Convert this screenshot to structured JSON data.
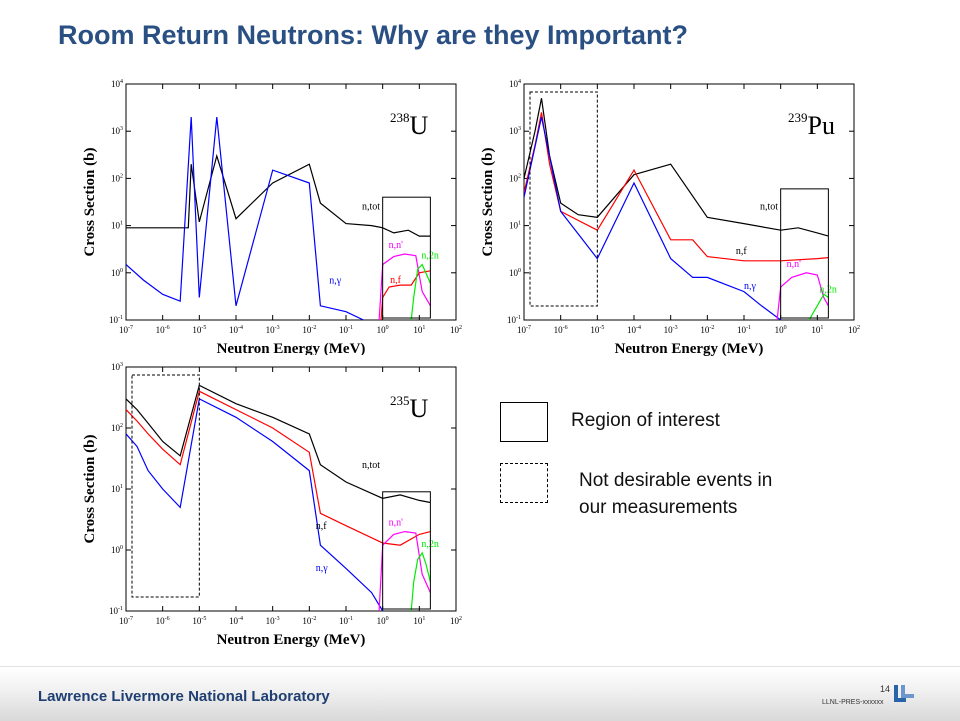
{
  "slide": {
    "title": "Room Return Neutrons: Why are they Important?",
    "legend": {
      "solid_label": "Region of interest",
      "dashed_label_line1": "Not desirable events in",
      "dashed_label_line2": "our measurements"
    },
    "footer": {
      "lab": "Lawrence Livermore National Laboratory",
      "page": "14",
      "code": "LLNL-PRES-xxxxxx"
    }
  },
  "chart_data": [
    {
      "type": "line",
      "isotope_mass": "238",
      "isotope_symbol": "U",
      "xlabel": "Neutron Energy (MeV)",
      "ylabel": "Cross Section (b)",
      "x_scale": "log",
      "y_scale": "log",
      "xlim": [
        1e-07,
        100
      ],
      "ylim": [
        0.1,
        10000
      ],
      "x_ticks": [
        "10-7",
        "10-6",
        "10-5",
        "10-4",
        "10-3",
        "10-2",
        "10-1",
        "100",
        "101",
        "102"
      ],
      "y_ticks": [
        "10-1",
        "100",
        "101",
        "102",
        "103",
        "104"
      ],
      "series": [
        {
          "name": "n,tot",
          "color": "#000000",
          "x": [
            1e-07,
            1e-06,
            5e-06,
            6e-06,
            1e-05,
            3e-05,
            0.0001,
            0.001,
            0.01,
            0.02,
            0.1,
            0.5,
            1,
            2,
            5,
            10,
            20
          ],
          "y": [
            9,
            9,
            9,
            200,
            12,
            300,
            14,
            80,
            200,
            30,
            11,
            10,
            9,
            7,
            8,
            6,
            6
          ]
        },
        {
          "name": "n,γ",
          "color": "#0000ff",
          "x": [
            1e-07,
            3e-07,
            1e-06,
            3e-06,
            6e-06,
            1e-05,
            3e-05,
            0.0001,
            0.001,
            0.01,
            0.02,
            0.1,
            0.3
          ],
          "y": [
            1.5,
            0.7,
            0.35,
            0.25,
            2000,
            0.3,
            2000,
            0.2,
            150,
            80,
            0.2,
            0.15,
            0.1
          ]
        },
        {
          "name": "n,n'",
          "color": "#ff00ff",
          "x": [
            0.8,
            1,
            2,
            4,
            8,
            12,
            20
          ],
          "y": [
            0.1,
            1.5,
            2.2,
            2.5,
            2.3,
            0.4,
            0.2
          ]
        },
        {
          "name": "n,f",
          "color": "#ff0000",
          "x": [
            0.9,
            1,
            1.5,
            3,
            6,
            10,
            20
          ],
          "y": [
            0.1,
            0.3,
            0.5,
            0.55,
            0.55,
            1.0,
            1.1
          ]
        },
        {
          "name": "n,2n",
          "color": "#00ee00",
          "x": [
            6,
            7,
            9,
            12,
            15,
            20
          ],
          "y": [
            0.1,
            0.3,
            1.2,
            1.5,
            1.0,
            0.6
          ]
        }
      ],
      "region_of_interest_x": [
        1,
        20
      ],
      "not_desirable_x": null
    },
    {
      "type": "line",
      "isotope_mass": "239",
      "isotope_symbol": "Pu",
      "xlabel": "Neutron Energy (MeV)",
      "ylabel": "Cross Section (b)",
      "x_scale": "log",
      "y_scale": "log",
      "xlim": [
        1e-07,
        100
      ],
      "ylim": [
        0.1,
        10000
      ],
      "x_ticks": [
        "10-7",
        "10-6",
        "10-5",
        "10-4",
        "10-3",
        "10-2",
        "10-1",
        "100",
        "101",
        "102"
      ],
      "y_ticks": [
        "10-1",
        "100",
        "101",
        "102",
        "103",
        "104"
      ],
      "series": [
        {
          "name": "n,tot",
          "color": "#000000",
          "x": [
            1e-07,
            2e-07,
            3e-07,
            5e-07,
            1e-06,
            3e-06,
            1e-05,
            0.0001,
            0.001,
            0.01,
            0.1,
            1,
            3,
            10,
            20
          ],
          "y": [
            100,
            1000,
            5000,
            300,
            30,
            17,
            15,
            120,
            200,
            15,
            11,
            8,
            9,
            7,
            6
          ]
        },
        {
          "name": "n,f",
          "color": "#ff0000",
          "x": [
            1e-07,
            2e-07,
            3e-07,
            5e-07,
            1e-06,
            1e-05,
            0.0001,
            0.001,
            0.004,
            0.01,
            0.1,
            1,
            10,
            20
          ],
          "y": [
            50,
            500,
            2500,
            200,
            20,
            8,
            150,
            5,
            5,
            2.2,
            1.8,
            1.8,
            2.0,
            2.1
          ]
        },
        {
          "name": "n,γ",
          "color": "#0000ff",
          "x": [
            1e-07,
            3e-07,
            1e-06,
            5e-06,
            1e-05,
            0.0001,
            0.001,
            0.004,
            0.01,
            0.1,
            0.3,
            1
          ],
          "y": [
            40,
            2000,
            20,
            4,
            2,
            80,
            2,
            0.8,
            0.8,
            0.4,
            0.2,
            0.1
          ]
        },
        {
          "name": "n,n'",
          "color": "#ff00ff",
          "x": [
            0.8,
            1,
            2,
            5,
            10,
            15,
            20
          ],
          "y": [
            0.1,
            0.5,
            0.8,
            1.0,
            0.9,
            0.3,
            0.2
          ]
        },
        {
          "name": "n,2n",
          "color": "#00ee00",
          "x": [
            6,
            8,
            10,
            15,
            20
          ],
          "y": [
            0.1,
            0.15,
            0.2,
            0.35,
            0.3
          ]
        }
      ],
      "region_of_interest_x": [
        1,
        20
      ],
      "not_desirable_x": [
        1e-07,
        1e-05
      ]
    },
    {
      "type": "line",
      "isotope_mass": "235",
      "isotope_symbol": "U",
      "xlabel": "Neutron Energy (MeV)",
      "ylabel": "Cross Section (b)",
      "x_scale": "log",
      "y_scale": "log",
      "xlim": [
        1e-07,
        100
      ],
      "ylim": [
        0.1,
        1000
      ],
      "x_ticks": [
        "10-7",
        "10-6",
        "10-5",
        "10-4",
        "10-3",
        "10-2",
        "10-1",
        "100",
        "101",
        "102"
      ],
      "y_ticks": [
        "10-1",
        "100",
        "101",
        "102",
        "103"
      ],
      "series": [
        {
          "name": "n,tot",
          "color": "#000000",
          "x": [
            1e-07,
            2e-07,
            4e-07,
            1e-06,
            3e-06,
            1e-05,
            0.0001,
            0.001,
            0.01,
            0.02,
            0.1,
            1,
            3,
            10,
            20
          ],
          "y": [
            300,
            200,
            120,
            60,
            35,
            500,
            250,
            150,
            80,
            25,
            13,
            7,
            8,
            6.5,
            6
          ]
        },
        {
          "name": "n,f",
          "color": "#ff0000",
          "x": [
            1e-07,
            2e-07,
            4e-07,
            1e-06,
            3e-06,
            1e-05,
            0.0001,
            0.001,
            0.01,
            0.02,
            0.1,
            1,
            3,
            10,
            20
          ],
          "y": [
            200,
            130,
            80,
            45,
            25,
            400,
            200,
            100,
            40,
            4,
            2.5,
            1.3,
            1.2,
            1.8,
            2.0
          ]
        },
        {
          "name": "n,γ",
          "color": "#0000ff",
          "x": [
            1e-07,
            2e-07,
            4e-07,
            1e-06,
            3e-06,
            1e-05,
            0.0001,
            0.001,
            0.01,
            0.02,
            0.1,
            0.5,
            1
          ],
          "y": [
            80,
            50,
            20,
            10,
            5,
            300,
            150,
            60,
            20,
            1.2,
            0.5,
            0.2,
            0.1
          ]
        },
        {
          "name": "n,n'",
          "color": "#ff00ff",
          "x": [
            0.8,
            1,
            2,
            4,
            8,
            12,
            20
          ],
          "y": [
            0.1,
            1.2,
            1.8,
            2.0,
            1.9,
            0.4,
            0.2
          ]
        },
        {
          "name": "n,2n",
          "color": "#00ee00",
          "x": [
            6,
            7,
            9,
            12,
            15,
            20
          ],
          "y": [
            0.1,
            0.3,
            0.7,
            0.9,
            0.6,
            0.3
          ]
        }
      ],
      "region_of_interest_x": [
        1,
        20
      ],
      "not_desirable_x": [
        1e-07,
        1e-05
      ]
    }
  ]
}
